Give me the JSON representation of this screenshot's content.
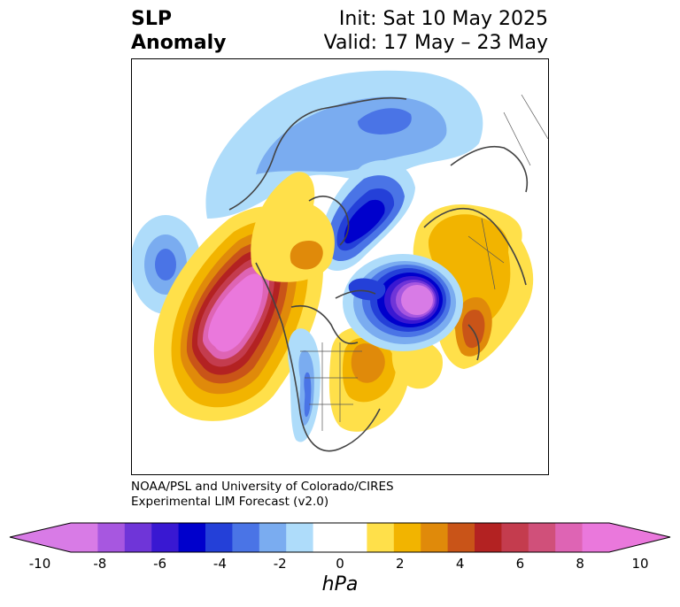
{
  "header": {
    "title_line1": "SLP",
    "title_line2": "Anomaly",
    "init_text": "Init: Sat 10 May 2025",
    "valid_text": "Valid: 17 May – 23 May"
  },
  "credit": {
    "line1": "NOAA/PSL and University of Colorado/CIRES",
    "line2": "Experimental LIM Forecast (v2.0)"
  },
  "colorbar": {
    "units": "hPa",
    "tick_labels": [
      "-10",
      "-8",
      "-6",
      "-4",
      "-2",
      "0",
      "2",
      "4",
      "6",
      "8",
      "10"
    ],
    "colors": [
      "#d87be6",
      "#a757e0",
      "#6f35d8",
      "#3918d2",
      "#0000cc",
      "#2440d8",
      "#4a74e6",
      "#7aacf0",
      "#aedcfa",
      "#ffffff",
      "#ffffff",
      "#ffe04a",
      "#f2b400",
      "#e08a0a",
      "#c95418",
      "#b32222",
      "#c43c4e",
      "#d0507a",
      "#de64b4",
      "#ea78dc"
    ]
  },
  "map": {
    "projection": "north-polar",
    "field": "sea level pressure anomaly",
    "features": [
      {
        "name": "north-pacific-high",
        "sign": "positive",
        "peak_hpa": 10
      },
      {
        "name": "west-pacific-low",
        "sign": "negative",
        "peak_hpa": -4
      },
      {
        "name": "north-atlantic-low",
        "sign": "negative",
        "peak_hpa": -10
      },
      {
        "name": "siberian-low",
        "sign": "negative",
        "peak_hpa": -6
      },
      {
        "name": "europe-high",
        "sign": "positive",
        "peak_hpa": 6
      },
      {
        "name": "eastern-us-high",
        "sign": "positive",
        "peak_hpa": 5
      },
      {
        "name": "central-us-low",
        "sign": "negative",
        "peak_hpa": -3
      },
      {
        "name": "western-canada-high",
        "sign": "positive",
        "peak_hpa": 5
      }
    ]
  }
}
